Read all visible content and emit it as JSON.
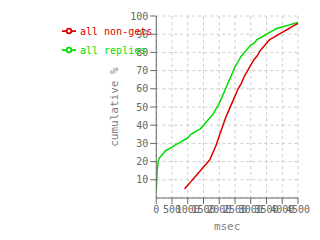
{
  "chart_data": {
    "type": "line",
    "title": "",
    "xlabel": "msec",
    "ylabel": "cumulative %",
    "xlim": [
      0,
      4500
    ],
    "ylim": [
      0,
      100
    ],
    "xticks": [
      0,
      500,
      1000,
      1500,
      2000,
      2500,
      3000,
      3500,
      4000,
      4500
    ],
    "yticks": [
      10,
      20,
      30,
      40,
      50,
      60,
      70,
      80,
      90,
      100
    ],
    "grid": true,
    "legend": "upper left",
    "series": [
      {
        "name": "all replies",
        "color": "#00dd00",
        "x": [
          0,
          30,
          60,
          100,
          150,
          200,
          250,
          300,
          350,
          400,
          450,
          500,
          600,
          700,
          800,
          900,
          1000,
          1100,
          1200,
          1300,
          1400,
          1500,
          1600,
          1700,
          1800,
          1900,
          2000,
          2100,
          2200,
          2300,
          2400,
          2500,
          2600,
          2700,
          2800,
          2900,
          3000,
          3100,
          3200,
          3300,
          3400,
          3500,
          3600,
          3700,
          3800,
          3900,
          4000,
          4100,
          4200,
          4300,
          4400,
          4500
        ],
        "values": [
          4,
          15,
          20,
          22,
          23,
          24,
          25,
          26,
          26.5,
          27,
          27.5,
          28,
          29,
          30,
          31,
          32,
          33,
          35,
          36,
          37,
          38,
          40,
          42,
          44,
          46,
          49,
          52,
          56,
          60,
          64,
          68,
          72,
          75,
          78,
          80,
          82,
          84,
          85,
          87,
          88,
          89,
          90,
          91,
          92,
          93,
          93.5,
          94,
          94.5,
          95,
          95.5,
          96,
          96.5
        ]
      },
      {
        "name": "all non-gets",
        "color": "#dd0000",
        "x": [
          900,
          950,
          1000,
          1050,
          1100,
          1150,
          1200,
          1250,
          1300,
          1400,
          1500,
          1600,
          1700,
          1800,
          1900,
          2000,
          2100,
          2200,
          2300,
          2400,
          2500,
          2600,
          2700,
          2800,
          2900,
          3000,
          3100,
          3200,
          3300,
          3400,
          3500,
          3600,
          3700,
          3800,
          3900,
          4000,
          4100,
          4200,
          4300,
          4400,
          4500
        ],
        "values": [
          5,
          6,
          7,
          8,
          9,
          10,
          11,
          12,
          13,
          15,
          17,
          19,
          21,
          25,
          29,
          34,
          39,
          44,
          48,
          52,
          56,
          60,
          63,
          67,
          70,
          73,
          76,
          78,
          81,
          83,
          85,
          87,
          88,
          89,
          90,
          91,
          92,
          93,
          94,
          95,
          96
        ]
      }
    ]
  }
}
